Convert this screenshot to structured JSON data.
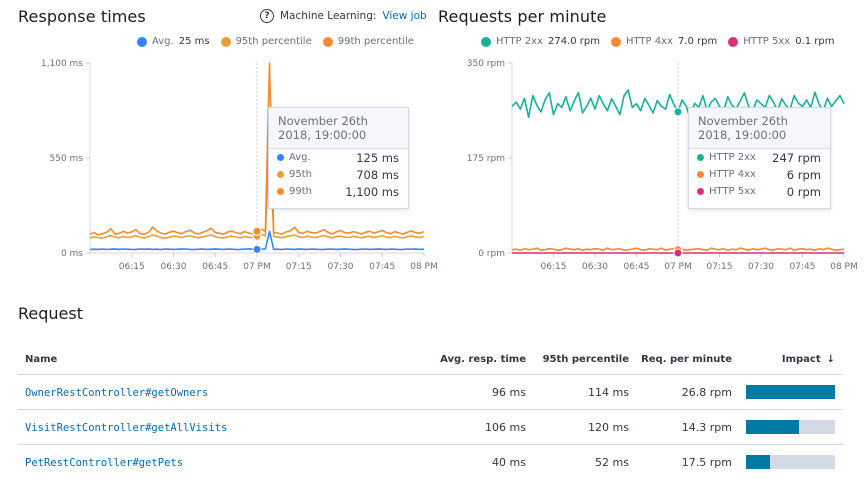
{
  "response_times": {
    "title": "Response times",
    "ml_label": "Machine Learning:",
    "ml_link": "View job",
    "legend": [
      {
        "label": "Avg.",
        "value": "25 ms",
        "color": "#3185fc"
      },
      {
        "label": "95th percentile",
        "value": "",
        "color": "#e7a035"
      },
      {
        "label": "99th percentile",
        "value": "",
        "color": "#f58b2f"
      }
    ],
    "tooltip": {
      "date": "November 26th",
      "time": "2018, 19:00:00",
      "rows": [
        {
          "label": "Avg.",
          "value": "125 ms",
          "color": "#3185fc"
        },
        {
          "label": "95th",
          "value": "708 ms",
          "color": "#e7a035"
        },
        {
          "label": "99th",
          "value": "1,100 ms",
          "color": "#f58b2f"
        }
      ]
    }
  },
  "requests_per_minute": {
    "title": "Requests per minute",
    "legend": [
      {
        "label": "HTTP 2xx",
        "value": "274.0 rpm",
        "color": "#18b19b"
      },
      {
        "label": "HTTP 4xx",
        "value": "7.0 rpm",
        "color": "#f58b2f"
      },
      {
        "label": "HTTP 5xx",
        "value": "0.1 rpm",
        "color": "#d6317a"
      }
    ],
    "tooltip": {
      "date": "November 26th",
      "time": "2018, 19:00:00",
      "rows": [
        {
          "label": "HTTP 2xx",
          "value": "247 rpm",
          "color": "#18b19b"
        },
        {
          "label": "HTTP 4xx",
          "value": "6 rpm",
          "color": "#f58b2f"
        },
        {
          "label": "HTTP 5xx",
          "value": "0 rpm",
          "color": "#d6317a"
        }
      ]
    }
  },
  "chart_data": [
    {
      "type": "line",
      "title": "Response times",
      "y_ticks": [
        "1,100 ms",
        "550 ms",
        "0 ms"
      ],
      "ylim": [
        0,
        1100
      ],
      "x_ticks": [
        "06:15",
        "06:30",
        "06:45",
        "07 PM",
        "07:15",
        "07:30",
        "07:45",
        "08 PM"
      ],
      "x_range_minutes": [
        360,
        480
      ],
      "cursor_minute": 420,
      "series": [
        {
          "name": "Avg.",
          "color": "#3185fc",
          "values": [
            20,
            22,
            21,
            23,
            20,
            22,
            24,
            21,
            23,
            22,
            20,
            21,
            23,
            22,
            24,
            21,
            22,
            20,
            23,
            22,
            21,
            22,
            24,
            23,
            21,
            20,
            22,
            23,
            21,
            22,
            24,
            22,
            21,
            23,
            22,
            20,
            21,
            23,
            24,
            22,
            21,
            22,
            23,
            125,
            21,
            22,
            20,
            23,
            22,
            21,
            24,
            22,
            21,
            23,
            22,
            20,
            21,
            22,
            23,
            21,
            22,
            24,
            22,
            21,
            20,
            22,
            23,
            21,
            22,
            24,
            22,
            21,
            23,
            22,
            20,
            21,
            23,
            22,
            24,
            21,
            22
          ]
        },
        {
          "name": "95th percentile",
          "color": "#e7a035",
          "values": [
            88,
            92,
            90,
            85,
            95,
            100,
            92,
            88,
            96,
            90,
            93,
            100,
            91,
            87,
            95,
            104,
            98,
            90,
            85,
            92,
            97,
            94,
            89,
            96,
            100,
            92,
            88,
            94,
            99,
            105,
            93,
            90,
            86,
            94,
            98,
            92,
            88,
            95,
            91,
            89,
            97,
            108,
            100,
            708,
            96,
            92,
            88,
            95,
            99,
            104,
            93,
            90,
            98,
            92,
            90,
            96,
            101,
            94,
            88,
            95,
            98,
            92,
            90,
            96,
            92,
            88,
            94,
            97,
            90,
            95,
            100,
            92,
            89,
            96,
            91,
            88,
            94,
            99,
            93,
            90,
            96
          ]
        },
        {
          "name": "99th percentile",
          "color": "#f58b2f",
          "values": [
            110,
            118,
            105,
            112,
            120,
            140,
            108,
            114,
            125,
            115,
            122,
            135,
            112,
            108,
            118,
            150,
            128,
            115,
            110,
            120,
            126,
            118,
            112,
            124,
            132,
            116,
            110,
            120,
            128,
            145,
            118,
            114,
            108,
            122,
            126,
            118,
            112,
            124,
            116,
            110,
            126,
            138,
            125,
            1100,
            120,
            115,
            110,
            122,
            128,
            150,
            118,
            114,
            126,
            118,
            115,
            124,
            135,
            120,
            110,
            122,
            130,
            118,
            114,
            124,
            118,
            110,
            120,
            126,
            114,
            122,
            130,
            118,
            112,
            124,
            116,
            110,
            120,
            128,
            118,
            114,
            124
          ]
        }
      ]
    },
    {
      "type": "line",
      "title": "Requests per minute",
      "y_ticks": [
        "350 rpm",
        "175 rpm",
        "0 rpm"
      ],
      "ylim": [
        0,
        350
      ],
      "x_ticks": [
        "06:15",
        "06:30",
        "06:45",
        "07 PM",
        "07:15",
        "07:30",
        "07:45",
        "08 PM"
      ],
      "x_range_minutes": [
        360,
        480
      ],
      "cursor_minute": 420,
      "series": [
        {
          "name": "HTTP 2xx",
          "color": "#18b19b",
          "values": [
            270,
            278,
            265,
            285,
            250,
            290,
            272,
            260,
            283,
            295,
            255,
            275,
            268,
            288,
            262,
            280,
            296,
            258,
            270,
            285,
            265,
            290,
            275,
            262,
            284,
            270,
            255,
            290,
            300,
            268,
            275,
            262,
            285,
            272,
            258,
            281,
            270,
            265,
            292,
            274,
            260,
            282,
            270,
            247,
            276,
            268,
            290,
            262,
            278,
            285,
            270,
            260,
            288,
            272,
            266,
            280,
            295,
            270,
            262,
            282,
            275,
            268,
            290,
            278,
            262,
            284,
            272,
            265,
            290,
            276,
            270,
            282,
            268,
            296,
            274,
            262,
            285,
            270,
            280,
            290,
            275
          ]
        },
        {
          "name": "HTTP 4xx",
          "color": "#f58b2f",
          "values": [
            6,
            7,
            5,
            8,
            6,
            7,
            9,
            5,
            6,
            8,
            7,
            5,
            6,
            9,
            7,
            6,
            8,
            5,
            7,
            6,
            8,
            7,
            5,
            9,
            6,
            7,
            8,
            5,
            6,
            7,
            9,
            6,
            5,
            8,
            7,
            6,
            9,
            5,
            7,
            8,
            6,
            7,
            5,
            6,
            7,
            8,
            6,
            5,
            9,
            7,
            6,
            8,
            5,
            7,
            6,
            9,
            7,
            5,
            8,
            6,
            7,
            9,
            6,
            5,
            8,
            7,
            6,
            9,
            5,
            7,
            8,
            6,
            7,
            5,
            8,
            6,
            9,
            7,
            5,
            6,
            7
          ]
        },
        {
          "name": "HTTP 5xx",
          "color": "#d6317a",
          "values": [
            0,
            0,
            0,
            0,
            0,
            0,
            0,
            0,
            0,
            0,
            0,
            0,
            0,
            0,
            0,
            0,
            0,
            0,
            0,
            0,
            0,
            0,
            0,
            0,
            0,
            0,
            0,
            0,
            0,
            0,
            0,
            0,
            0,
            0,
            0,
            0,
            0,
            0,
            0,
            0,
            0,
            0,
            0,
            0,
            0,
            0,
            0,
            0,
            0,
            0,
            0,
            0,
            0,
            0,
            0,
            0,
            0,
            0,
            0,
            0,
            0,
            0,
            0,
            0,
            0,
            0,
            0,
            0,
            0,
            0,
            0,
            0,
            0,
            0,
            0,
            0,
            0,
            0,
            0,
            0,
            0
          ]
        }
      ]
    }
  ],
  "request": {
    "title": "Request",
    "columns": {
      "name": "Name",
      "avg": "Avg. resp. time",
      "p95": "95th percentile",
      "rpm": "Req. per minute",
      "impact": "Impact",
      "sort_arrow": "↓"
    },
    "rows": [
      {
        "name": "OwnerRestController#getOwners",
        "avg": "96 ms",
        "p95": "114 ms",
        "rpm": "26.8 rpm",
        "impact": 100
      },
      {
        "name": "VisitRestController#getAllVisits",
        "avg": "106 ms",
        "p95": "120 ms",
        "rpm": "14.3 rpm",
        "impact": 59
      },
      {
        "name": "PetRestController#getPets",
        "avg": "40 ms",
        "p95": "52 ms",
        "rpm": "17.5 rpm",
        "impact": 27
      }
    ]
  }
}
